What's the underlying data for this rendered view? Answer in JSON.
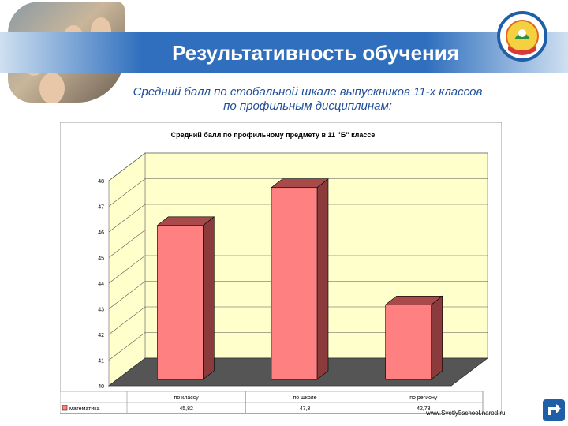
{
  "header": {
    "title": "Результативность обучения"
  },
  "subtitle": {
    "line1": "Средний балл по стобальной шкале выпускников 11-х классов",
    "line2": "по профильным дисциплинам:"
  },
  "footer": {
    "url": "www.Svetly5school.narod.ru"
  },
  "colors": {
    "banner": "#2f6fbd",
    "bar_front": "#ff8080",
    "bar_side": "#8b3b3b",
    "plot_bg": "#ffffcc",
    "floor": "#555555",
    "subtitle": "#1f4f9a"
  },
  "chart_data": {
    "type": "bar",
    "title": "Средний балл по профильному предмету в 11 \"Б\" классе",
    "categories": [
      "по классу",
      "по школе",
      "по региону"
    ],
    "series": [
      {
        "name": "математика",
        "values": [
          45.82,
          47.3,
          42.73
        ],
        "value_labels": [
          "45,82",
          "47,3",
          "42,73"
        ]
      }
    ],
    "yticks": [
      "40",
      "41",
      "42",
      "43",
      "44",
      "45",
      "46",
      "47",
      "48"
    ],
    "ylim": [
      40,
      48
    ],
    "grid": true,
    "legend": "data-table"
  }
}
